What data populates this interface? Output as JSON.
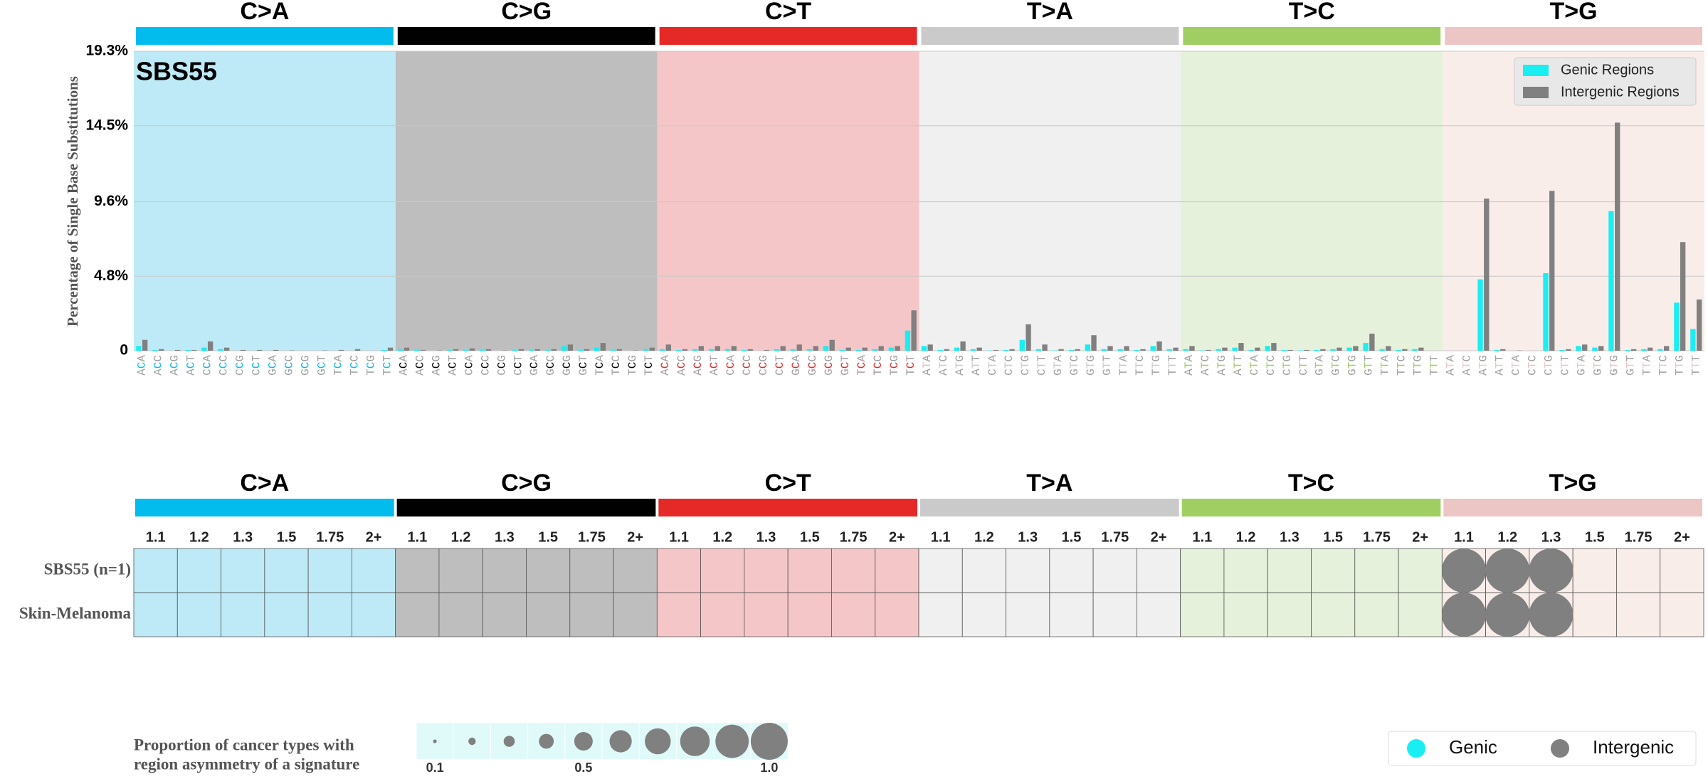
{
  "chart_data": [
    {
      "type": "bar",
      "annotation": "SBS55",
      "y_label": "Percentage of Single Base Substitutions",
      "ylim": [
        0,
        19.3
      ],
      "yticks": [
        0,
        {
          "value": 4.8,
          "label": "4.8%"
        },
        {
          "value": 9.6,
          "label": "9.6%"
        },
        {
          "value": 14.5,
          "label": "14.5%"
        },
        {
          "value": 19.3,
          "label": "19.3%"
        }
      ],
      "grid": true,
      "legend": "upper right",
      "groups": [
        {
          "name": "C>A",
          "color": "#03bcee",
          "background": "#bdeaf6"
        },
        {
          "name": "C>G",
          "color": "#010101",
          "background": "#bebebe"
        },
        {
          "name": "C>T",
          "color": "#e42926",
          "background": "#f5c6c8"
        },
        {
          "name": "T>A",
          "color": "#cbcacb",
          "background": "#f0f0f0"
        },
        {
          "name": "T>C",
          "color": "#a1ce63",
          "background": "#e5f1da"
        },
        {
          "name": "T>G",
          "color": "#ebc6c4",
          "background": "#f9edea"
        }
      ],
      "categories": [
        "ACA",
        "ACC",
        "ACG",
        "ACT",
        "CCA",
        "CCC",
        "CCG",
        "CCT",
        "GCA",
        "GCC",
        "GCG",
        "GCT",
        "TCA",
        "TCC",
        "TCG",
        "TCT",
        "ACA",
        "ACC",
        "ACG",
        "ACT",
        "CCA",
        "CCC",
        "CCG",
        "CCT",
        "GCA",
        "GCC",
        "GCG",
        "GCT",
        "TCA",
        "TCC",
        "TCG",
        "TCT",
        "ACA",
        "ACC",
        "ACG",
        "ACT",
        "CCA",
        "CCC",
        "CCG",
        "CCT",
        "GCA",
        "GCC",
        "GCG",
        "GCT",
        "TCA",
        "TCC",
        "TCG",
        "TCT",
        "ATA",
        "ATC",
        "ATG",
        "ATT",
        "CTA",
        "CTC",
        "CTG",
        "CTT",
        "GTA",
        "GTC",
        "GTG",
        "GTT",
        "TTA",
        "TTC",
        "TTG",
        "TTT",
        "ATA",
        "ATC",
        "ATG",
        "ATT",
        "CTA",
        "CTC",
        "CTG",
        "CTT",
        "GTA",
        "GTC",
        "GTG",
        "GTT",
        "TTA",
        "TTC",
        "TTG",
        "TTT",
        "ATA",
        "ATC",
        "ATG",
        "ATT",
        "CTA",
        "CTC",
        "CTG",
        "CTT",
        "GTA",
        "GTC",
        "GTG",
        "GTT",
        "TTA",
        "TTC",
        "TTG",
        "TTT"
      ],
      "series": [
        {
          "name": "Genic Regions",
          "color": "#19eef2",
          "values": [
            0.3,
            0.05,
            0,
            0.05,
            0.2,
            0.1,
            0,
            0,
            0,
            0,
            0,
            0,
            0,
            0,
            0,
            0.05,
            0.1,
            0.05,
            0,
            0.05,
            0.05,
            0.05,
            0,
            0.05,
            0.05,
            0.05,
            0.3,
            0.05,
            0.2,
            0.05,
            0,
            0.1,
            0.1,
            0.05,
            0.1,
            0.1,
            0.1,
            0.05,
            0,
            0.1,
            0.1,
            0.1,
            0.3,
            0.05,
            0.05,
            0.1,
            0.2,
            1.3,
            0.3,
            0.05,
            0.2,
            0.1,
            0.02,
            0.05,
            0.7,
            0.1,
            0.02,
            0.05,
            0.4,
            0.1,
            0.1,
            0.05,
            0.3,
            0.1,
            0.1,
            0.02,
            0.1,
            0.2,
            0.05,
            0.3,
            0.05,
            0.02,
            0.05,
            0.1,
            0.2,
            0.5,
            0.1,
            0.05,
            0.1,
            0,
            0,
            0,
            4.6,
            0.05,
            0,
            0,
            5.0,
            0.05,
            0.3,
            0.2,
            9.0,
            0.05,
            0.1,
            0.1,
            3.1,
            1.4
          ]
        },
        {
          "name": "Intergenic Regions",
          "color": "#808080",
          "values": [
            0.7,
            0.1,
            0.05,
            0.05,
            0.6,
            0.2,
            0.05,
            0.05,
            0.05,
            0.02,
            0,
            0.02,
            0.05,
            0.1,
            0,
            0.2,
            0.2,
            0.05,
            0.02,
            0.1,
            0.15,
            0.1,
            0.02,
            0.1,
            0.1,
            0.1,
            0.4,
            0.1,
            0.5,
            0.1,
            0.02,
            0.2,
            0.4,
            0.1,
            0.3,
            0.3,
            0.3,
            0.1,
            0.05,
            0.3,
            0.4,
            0.3,
            0.7,
            0.2,
            0.2,
            0.3,
            0.3,
            2.6,
            0.4,
            0.1,
            0.6,
            0.2,
            0.05,
            0.1,
            1.7,
            0.4,
            0.1,
            0.1,
            1.0,
            0.3,
            0.3,
            0.1,
            0.6,
            0.2,
            0.3,
            0.05,
            0.2,
            0.5,
            0.2,
            0.5,
            0.05,
            0.05,
            0.1,
            0.2,
            0.3,
            1.1,
            0.3,
            0.1,
            0.2,
            0,
            0,
            0,
            9.8,
            0.1,
            0.02,
            0,
            10.3,
            0.1,
            0.4,
            0.3,
            14.7,
            0.1,
            0.2,
            0.3,
            7.0,
            3.3
          ]
        }
      ]
    },
    {
      "type": "bubble",
      "rows": [
        "SBS55 (n=1)",
        "Skin-Melanoma"
      ],
      "columns": [
        "1.1",
        "1.2",
        "1.3",
        "1.5",
        "1.75",
        "2+"
      ],
      "color": "#808080",
      "values": [
        [
          null,
          null,
          null,
          null,
          null,
          null,
          null,
          null,
          null,
          null,
          null,
          null,
          null,
          null,
          null,
          null,
          null,
          null,
          null,
          null,
          null,
          null,
          null,
          null,
          null,
          null,
          null,
          null,
          null,
          null,
          1.0,
          1.0,
          1.0,
          null,
          null,
          null
        ],
        [
          null,
          null,
          null,
          null,
          null,
          null,
          null,
          null,
          null,
          null,
          null,
          null,
          null,
          null,
          null,
          null,
          null,
          null,
          null,
          null,
          null,
          null,
          null,
          null,
          null,
          null,
          null,
          null,
          null,
          null,
          1.0,
          1.0,
          1.0,
          null,
          null,
          null
        ]
      ],
      "size_legend": {
        "title": [
          "Proportion of cancer types with",
          "region asymmetry of a signature"
        ],
        "values": [
          0.1,
          0.2,
          0.3,
          0.4,
          0.5,
          0.6,
          0.7,
          0.8,
          0.9,
          1.0
        ],
        "ticks": [
          0.1,
          0.5,
          {
            "value": 1.0,
            "label": "1.0"
          }
        ]
      },
      "marker_legend": [
        "Genic",
        "Intergenic"
      ]
    }
  ]
}
